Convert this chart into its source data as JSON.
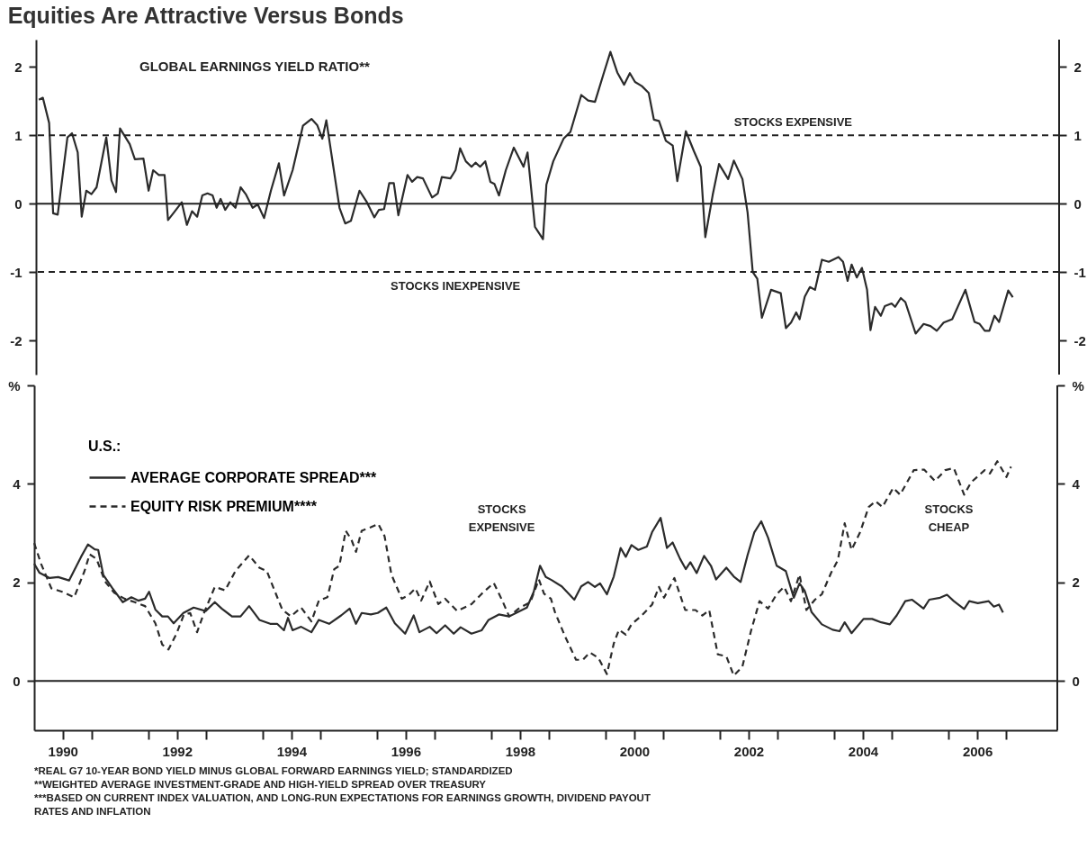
{
  "chart_data": [
    {
      "type": "line",
      "title": "Equities Are Attractive Versus Bonds",
      "subtitle": "GLOBAL EARNINGS YIELD RATIO**",
      "xlim": [
        1990,
        2007.9
      ],
      "ylim": [
        -2.5,
        2.4
      ],
      "yticks": [
        -2,
        -1,
        0,
        1,
        2
      ],
      "y2lim": [
        -2.5,
        2.4
      ],
      "y2ticks": [
        -2,
        -1,
        0,
        1,
        2
      ],
      "tick_labels": "y",
      "ref_lines": [
        {
          "axis": "y",
          "value": 0,
          "line_style": "solid"
        },
        {
          "axis": "y",
          "value": 1,
          "label": "STOCKS EXPENSIVE",
          "line_style": "dashed"
        },
        {
          "axis": "y",
          "value": -1,
          "label": "STOCKS INEXPENSIVE",
          "line_style": "dashed"
        }
      ],
      "series": [
        {
          "color": "#2b2b2b",
          "line_style": "solid",
          "x": [
            1990.05,
            1990.12,
            1990.23,
            1990.3,
            1990.38,
            1990.55,
            1990.63,
            1990.73,
            1990.8,
            1990.88,
            1990.97,
            1991.06,
            1991.23,
            1991.32,
            1991.4,
            1991.47,
            1991.64,
            1991.73,
            1991.88,
            1991.97,
            1992.05,
            1992.15,
            1992.25,
            1992.31,
            1992.43,
            1992.55,
            1992.64,
            1992.73,
            1992.82,
            1992.91,
            1993.0,
            1993.09,
            1993.16,
            1993.23,
            1993.31,
            1993.4,
            1993.49,
            1993.58,
            1993.67,
            1993.79,
            1993.88,
            1993.99,
            1994.11,
            1994.25,
            1994.34,
            1994.49,
            1994.67,
            1994.82,
            1994.92,
            1995.01,
            1995.08,
            1995.31,
            1995.41,
            1995.51,
            1995.66,
            1995.79,
            1995.92,
            1996.0,
            1996.09,
            1996.18,
            1996.26,
            1996.34,
            1996.5,
            1996.58,
            1996.67,
            1996.77,
            1996.93,
            1997.03,
            1997.1,
            1997.25,
            1997.34,
            1997.42,
            1997.52,
            1997.62,
            1997.69,
            1997.77,
            1997.86,
            1997.95,
            1998.02,
            1998.1,
            1998.22,
            1998.36,
            1998.53,
            1998.6,
            1998.73,
            1998.87,
            1998.93,
            1999.05,
            1999.23,
            1999.35,
            1999.54,
            1999.66,
            1999.78,
            1999.93,
            2000.05,
            2000.17,
            2000.29,
            2000.39,
            2000.48,
            2000.6,
            2000.72,
            2000.81,
            2000.9,
            2001.02,
            2001.14,
            2001.22,
            2001.37,
            2001.51,
            2001.63,
            2001.71,
            2001.84,
            2001.95,
            2002.11,
            2002.21,
            2002.36,
            2002.45,
            2002.54,
            2002.62,
            2002.7,
            2002.86,
            2003.03,
            2003.12,
            2003.21,
            2003.3,
            2003.36,
            2003.45,
            2003.54,
            2003.63,
            2003.75,
            2003.87,
            2004.04,
            2004.12,
            2004.2,
            2004.27,
            2004.36,
            2004.45,
            2004.54,
            2004.6,
            2004.68,
            2004.78,
            2004.85,
            2004.97,
            2005.03,
            2005.13,
            2005.21,
            2005.39,
            2005.53,
            2005.65,
            2005.76,
            2005.88,
            2006.03,
            2006.26,
            2006.42,
            2006.51,
            2006.6,
            2006.68,
            2006.77,
            2006.85,
            2007.01,
            2007.09
          ],
          "values": [
            1.52,
            1.55,
            1.18,
            -0.14,
            -0.16,
            0.97,
            1.03,
            0.75,
            -0.19,
            0.19,
            0.14,
            0.24,
            0.97,
            0.34,
            0.17,
            1.1,
            0.87,
            0.65,
            0.66,
            0.19,
            0.49,
            0.42,
            0.42,
            -0.24,
            -0.11,
            0.02,
            -0.31,
            -0.11,
            -0.19,
            0.12,
            0.15,
            0.12,
            -0.06,
            0.07,
            -0.09,
            0.02,
            -0.06,
            0.24,
            0.14,
            -0.06,
            -0.01,
            -0.21,
            0.19,
            0.59,
            0.12,
            0.49,
            1.14,
            1.24,
            1.15,
            0.95,
            1.22,
            -0.06,
            -0.29,
            -0.25,
            0.19,
            0.02,
            -0.2,
            -0.09,
            -0.08,
            0.3,
            0.3,
            -0.17,
            0.42,
            0.32,
            0.39,
            0.37,
            0.09,
            0.15,
            0.39,
            0.37,
            0.49,
            0.81,
            0.62,
            0.54,
            0.6,
            0.54,
            0.62,
            0.32,
            0.29,
            0.12,
            0.49,
            0.82,
            0.54,
            0.75,
            -0.34,
            -0.52,
            0.28,
            0.62,
            0.95,
            1.05,
            1.59,
            1.51,
            1.49,
            1.9,
            2.22,
            1.92,
            1.74,
            1.91,
            1.78,
            1.72,
            1.62,
            1.23,
            1.21,
            0.92,
            0.85,
            0.33,
            1.06,
            0.77,
            0.54,
            -0.49,
            0.13,
            0.58,
            0.36,
            0.63,
            0.36,
            -0.13,
            -1.0,
            -1.1,
            -1.67,
            -1.26,
            -1.31,
            -1.82,
            -1.74,
            -1.59,
            -1.69,
            -1.36,
            -1.22,
            -1.26,
            -0.82,
            -0.85,
            -0.78,
            -0.85,
            -1.13,
            -0.89,
            -1.08,
            -0.94,
            -1.26,
            -1.85,
            -1.51,
            -1.64,
            -1.5,
            -1.46,
            -1.51,
            -1.38,
            -1.44,
            -1.9,
            -1.76,
            -1.79,
            -1.86,
            -1.74,
            -1.69,
            -1.26,
            -1.73,
            -1.76,
            -1.86,
            -1.86,
            -1.64,
            -1.73,
            -1.27,
            -1.37
          ]
        }
      ]
    },
    {
      "type": "line",
      "xlim": [
        1990,
        2007.9
      ],
      "xticks": [
        {
          "value": 1990.5,
          "label": "1990"
        },
        {
          "value": 1991,
          "label": null
        },
        {
          "value": 1992,
          "label": null
        },
        {
          "value": 1992.5,
          "label": "1992"
        },
        {
          "value": 1993,
          "label": null
        },
        {
          "value": 1994,
          "label": null
        },
        {
          "value": 1994.5,
          "label": "1994"
        },
        {
          "value": 1995,
          "label": null
        },
        {
          "value": 1996,
          "label": null
        },
        {
          "value": 1996.5,
          "label": "1996"
        },
        {
          "value": 1997,
          "label": null
        },
        {
          "value": 1998,
          "label": null
        },
        {
          "value": 1998.5,
          "label": "1998"
        },
        {
          "value": 1999,
          "label": null
        },
        {
          "value": 2000,
          "label": null
        },
        {
          "value": 2000.5,
          "label": "2000"
        },
        {
          "value": 2001,
          "label": null
        },
        {
          "value": 2002,
          "label": null
        },
        {
          "value": 2002.5,
          "label": "2002"
        },
        {
          "value": 2003,
          "label": null
        },
        {
          "value": 2004,
          "label": null
        },
        {
          "value": 2004.5,
          "label": "2004"
        },
        {
          "value": 2005,
          "label": null
        },
        {
          "value": 2006,
          "label": null
        },
        {
          "value": 2006.5,
          "label": "2006"
        },
        {
          "value": 2007,
          "label": null
        }
      ],
      "ylim": [
        -1,
        6
      ],
      "yticks": [
        0,
        2,
        4,
        {
          "value": 6,
          "label": "%"
        }
      ],
      "y2lim": [
        -1,
        6
      ],
      "y2ticks": [
        0,
        2,
        4,
        {
          "value": 6,
          "label": "%"
        }
      ],
      "legend": "top left",
      "legend_title": "U.S.:",
      "ref_lines": [
        {
          "axis": "y",
          "value": 0,
          "line_style": "solid"
        }
      ],
      "annotations": [
        "STOCKS EXPENSIVE",
        "STOCKS CHEAP",
        "*REAL G7 10-YEAR BOND YIELD MINUS GLOBAL FORWARD EARNINGS YIELD; STANDARDIZED",
        "**WEIGHTED AVERAGE INVESTMENT-GRADE AND HIGH-YIELD SPREAD OVER TREASURY",
        "***BASED ON CURRENT INDEX VALUATION, AND LONG-RUN EXPECTATIONS FOR EARNINGS GROWTH, DIVIDEND PAYOUT RATES AND INFLATION"
      ],
      "series": [
        {
          "name": "AVERAGE CORPORATE SPREAD***",
          "color": "#2b2b2b",
          "line_style": "solid",
          "x": [
            1990.0,
            1990.09,
            1990.27,
            1990.42,
            1990.61,
            1990.82,
            1990.94,
            1991.06,
            1991.12,
            1991.21,
            1991.37,
            1991.55,
            1991.7,
            1991.82,
            1991.94,
            1992.01,
            1992.12,
            1992.24,
            1992.34,
            1992.44,
            1992.61,
            1992.79,
            1993.0,
            1993.16,
            1993.28,
            1993.46,
            1993.61,
            1993.76,
            1993.94,
            1994.13,
            1994.25,
            1994.37,
            1994.44,
            1994.52,
            1994.67,
            1994.85,
            1994.98,
            1995.16,
            1995.37,
            1995.52,
            1995.63,
            1995.73,
            1995.89,
            1996.01,
            1996.16,
            1996.31,
            1996.49,
            1996.64,
            1996.74,
            1996.92,
            1997.04,
            1997.19,
            1997.34,
            1997.46,
            1997.65,
            1997.83,
            1997.95,
            1998.13,
            1998.31,
            1998.43,
            1998.62,
            1998.74,
            1998.85,
            1998.95,
            1999.05,
            1999.23,
            1999.45,
            1999.57,
            1999.69,
            1999.81,
            1999.9,
            2000.02,
            2000.14,
            2000.26,
            2000.35,
            2000.45,
            2000.57,
            2000.72,
            2000.81,
            2000.96,
            2001.07,
            2001.17,
            2001.3,
            2001.4,
            2001.48,
            2001.59,
            2001.72,
            2001.84,
            2001.93,
            2002.11,
            2002.24,
            2002.36,
            2002.48,
            2002.6,
            2002.72,
            2002.84,
            2002.99,
            2003.15,
            2003.29,
            2003.39,
            2003.48,
            2003.6,
            2003.78,
            2003.97,
            2004.09,
            2004.18,
            2004.3,
            2004.51,
            2004.66,
            2004.82,
            2004.97,
            2005.09,
            2005.24,
            2005.36,
            2005.56,
            2005.66,
            2005.85,
            2005.97,
            2006.09,
            2006.27,
            2006.36,
            2006.51,
            2006.7,
            2006.79,
            2006.88,
            2006.95
          ],
          "values": [
            2.38,
            2.2,
            2.09,
            2.11,
            2.04,
            2.52,
            2.77,
            2.67,
            2.66,
            2.15,
            1.88,
            1.6,
            1.7,
            1.63,
            1.67,
            1.81,
            1.45,
            1.31,
            1.31,
            1.17,
            1.38,
            1.49,
            1.42,
            1.6,
            1.47,
            1.31,
            1.31,
            1.52,
            1.24,
            1.16,
            1.16,
            1.03,
            1.28,
            1.03,
            1.1,
            0.99,
            1.24,
            1.16,
            1.33,
            1.47,
            1.16,
            1.38,
            1.35,
            1.38,
            1.49,
            1.17,
            0.96,
            1.33,
            0.99,
            1.1,
            0.97,
            1.13,
            0.96,
            1.09,
            0.96,
            1.03,
            1.24,
            1.35,
            1.31,
            1.38,
            1.49,
            1.81,
            2.34,
            2.11,
            2.05,
            1.92,
            1.65,
            1.92,
            2.01,
            1.91,
            1.98,
            1.76,
            2.12,
            2.7,
            2.52,
            2.76,
            2.66,
            2.73,
            3.02,
            3.31,
            2.7,
            2.81,
            2.48,
            2.27,
            2.41,
            2.19,
            2.54,
            2.34,
            2.06,
            2.3,
            2.12,
            2.01,
            2.55,
            3.02,
            3.24,
            2.91,
            2.34,
            2.23,
            1.69,
            1.98,
            1.83,
            1.4,
            1.15,
            1.04,
            1.01,
            1.19,
            0.97,
            1.26,
            1.26,
            1.19,
            1.15,
            1.33,
            1.62,
            1.65,
            1.47,
            1.65,
            1.69,
            1.75,
            1.62,
            1.46,
            1.62,
            1.58,
            1.62,
            1.51,
            1.55,
            1.39
          ]
        },
        {
          "name": "EQUITY RISK PREMIUM****",
          "color": "#2b2b2b",
          "line_style": "dashed",
          "x": [
            1990.0,
            1990.12,
            1990.3,
            1990.49,
            1990.7,
            1990.88,
            1990.97,
            1991.09,
            1991.24,
            1991.4,
            1991.58,
            1991.76,
            1991.94,
            1992.12,
            1992.24,
            1992.35,
            1992.49,
            1992.62,
            1992.73,
            1992.85,
            1992.97,
            1993.16,
            1993.34,
            1993.52,
            1993.76,
            1993.94,
            1994.07,
            1994.19,
            1994.34,
            1994.49,
            1994.67,
            1994.85,
            1994.98,
            1995.13,
            1995.25,
            1995.34,
            1995.45,
            1995.55,
            1995.63,
            1995.73,
            1995.89,
            1996.02,
            1996.13,
            1996.25,
            1996.43,
            1996.55,
            1996.67,
            1996.77,
            1996.92,
            1997.07,
            1997.19,
            1997.4,
            1997.65,
            1997.83,
            1998.04,
            1998.19,
            1998.31,
            1998.5,
            1998.68,
            1998.83,
            1998.92,
            1999.04,
            1999.11,
            1999.29,
            1999.48,
            1999.6,
            1999.72,
            1999.87,
            2000.02,
            2000.14,
            2000.23,
            2000.35,
            2000.45,
            2000.63,
            2000.81,
            2000.93,
            2001.02,
            2001.2,
            2001.39,
            2001.57,
            2001.69,
            2001.81,
            2001.96,
            2002.11,
            2002.24,
            2002.39,
            2002.54,
            2002.69,
            2002.84,
            2002.99,
            2003.12,
            2003.24,
            2003.39,
            2003.51,
            2003.66,
            2003.78,
            2003.94,
            2004.06,
            2004.18,
            2004.3,
            2004.45,
            2004.6,
            2004.72,
            2004.84,
            2005.03,
            2005.15,
            2005.39,
            2005.57,
            2005.76,
            2005.94,
            2006.09,
            2006.27,
            2006.39,
            2006.63,
            2006.72,
            2006.85,
            2007.01,
            2007.09
          ],
          "values": [
            2.8,
            2.38,
            1.88,
            1.81,
            1.7,
            2.23,
            2.57,
            2.48,
            2.02,
            1.79,
            1.67,
            1.6,
            1.52,
            1.17,
            0.74,
            0.64,
            0.96,
            1.35,
            1.38,
            0.99,
            1.38,
            1.91,
            1.84,
            2.23,
            2.55,
            2.3,
            2.23,
            1.88,
            1.45,
            1.31,
            1.49,
            1.21,
            1.63,
            1.7,
            2.27,
            2.34,
            3.05,
            2.87,
            2.62,
            3.05,
            3.12,
            3.19,
            2.94,
            2.16,
            1.67,
            1.74,
            1.88,
            1.63,
            2.02,
            1.56,
            1.67,
            1.42,
            1.56,
            1.77,
            1.99,
            1.63,
            1.31,
            1.49,
            1.6,
            2.06,
            1.77,
            1.67,
            1.4,
            0.9,
            0.43,
            0.43,
            0.58,
            0.47,
            0.14,
            0.76,
            1.04,
            0.94,
            1.15,
            1.33,
            1.55,
            1.91,
            1.69,
            2.09,
            1.44,
            1.44,
            1.33,
            1.44,
            0.54,
            0.5,
            0.11,
            0.29,
            1.01,
            1.62,
            1.47,
            1.76,
            1.91,
            1.62,
            2.16,
            1.44,
            1.65,
            1.76,
            2.19,
            2.45,
            3.2,
            2.66,
            3.02,
            3.53,
            3.65,
            3.53,
            3.92,
            3.78,
            4.28,
            4.29,
            4.06,
            4.28,
            4.32,
            3.78,
            4.03,
            4.28,
            4.21,
            4.46,
            4.14,
            4.35
          ]
        }
      ]
    }
  ]
}
